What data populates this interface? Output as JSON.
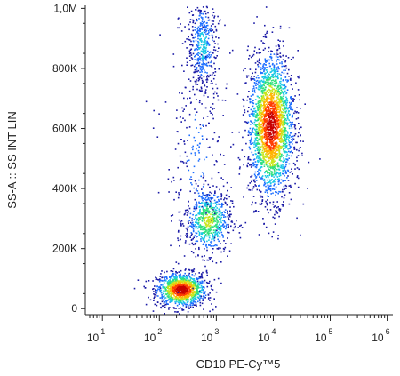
{
  "chart_data": {
    "type": "scatter",
    "style": "density dot plot",
    "xlabel": "CD10 PE-Cy™5",
    "ylabel": "SS-A :: SS INT LIN",
    "x_scale": "log",
    "x_range_log10": [
      0.7,
      6.1
    ],
    "x_ticks": [
      {
        "base": "10",
        "exp": "1",
        "value": 10
      },
      {
        "base": "10",
        "exp": "2",
        "value": 100
      },
      {
        "base": "10",
        "exp": "3",
        "value": 1000
      },
      {
        "base": "10",
        "exp": "4",
        "value": 10000
      },
      {
        "base": "10",
        "exp": "5",
        "value": 100000
      },
      {
        "base": "10",
        "exp": "6",
        "value": 1000000
      }
    ],
    "y_scale": "linear",
    "ylim": [
      -20000,
      1010000
    ],
    "y_ticks": [
      {
        "label": "0",
        "value": 0
      },
      {
        "label": "200K",
        "value": 200000
      },
      {
        "label": "400K",
        "value": 400000
      },
      {
        "label": "600K",
        "value": 600000
      },
      {
        "label": "800K",
        "value": 800000
      },
      {
        "label": "1,0M",
        "value": 1000000
      }
    ],
    "grid": false,
    "legend": "none",
    "populations": [
      {
        "center_log10_x": 2.38,
        "center_y": 65000,
        "spread_log10_x": 0.22,
        "spread_y": 28000,
        "count": 1100,
        "peak_density": 1.0
      },
      {
        "center_log10_x": 2.85,
        "center_y": 295000,
        "spread_log10_x": 0.2,
        "spread_y": 55000,
        "count": 650,
        "peak_density": 0.55
      },
      {
        "center_log10_x": 3.95,
        "center_y": 610000,
        "spread_log10_x": 0.2,
        "spread_y": 120000,
        "count": 2400,
        "peak_density": 0.95
      },
      {
        "center_log10_x": 2.75,
        "center_y": 880000,
        "spread_log10_x": 0.13,
        "spread_y": 80000,
        "count": 450,
        "peak_density": 0.3
      },
      {
        "center_log10_x": 2.65,
        "center_y": 500000,
        "spread_log10_x": 0.3,
        "spread_y": 250000,
        "count": 300,
        "peak_density": 0.15
      }
    ]
  },
  "colors": {
    "axis": "#222222",
    "density_scale": [
      "#1a1aa6",
      "#1e6fff",
      "#19c8e6",
      "#2ee07a",
      "#c8e61e",
      "#ffb400",
      "#ff3c00",
      "#c80000"
    ]
  }
}
